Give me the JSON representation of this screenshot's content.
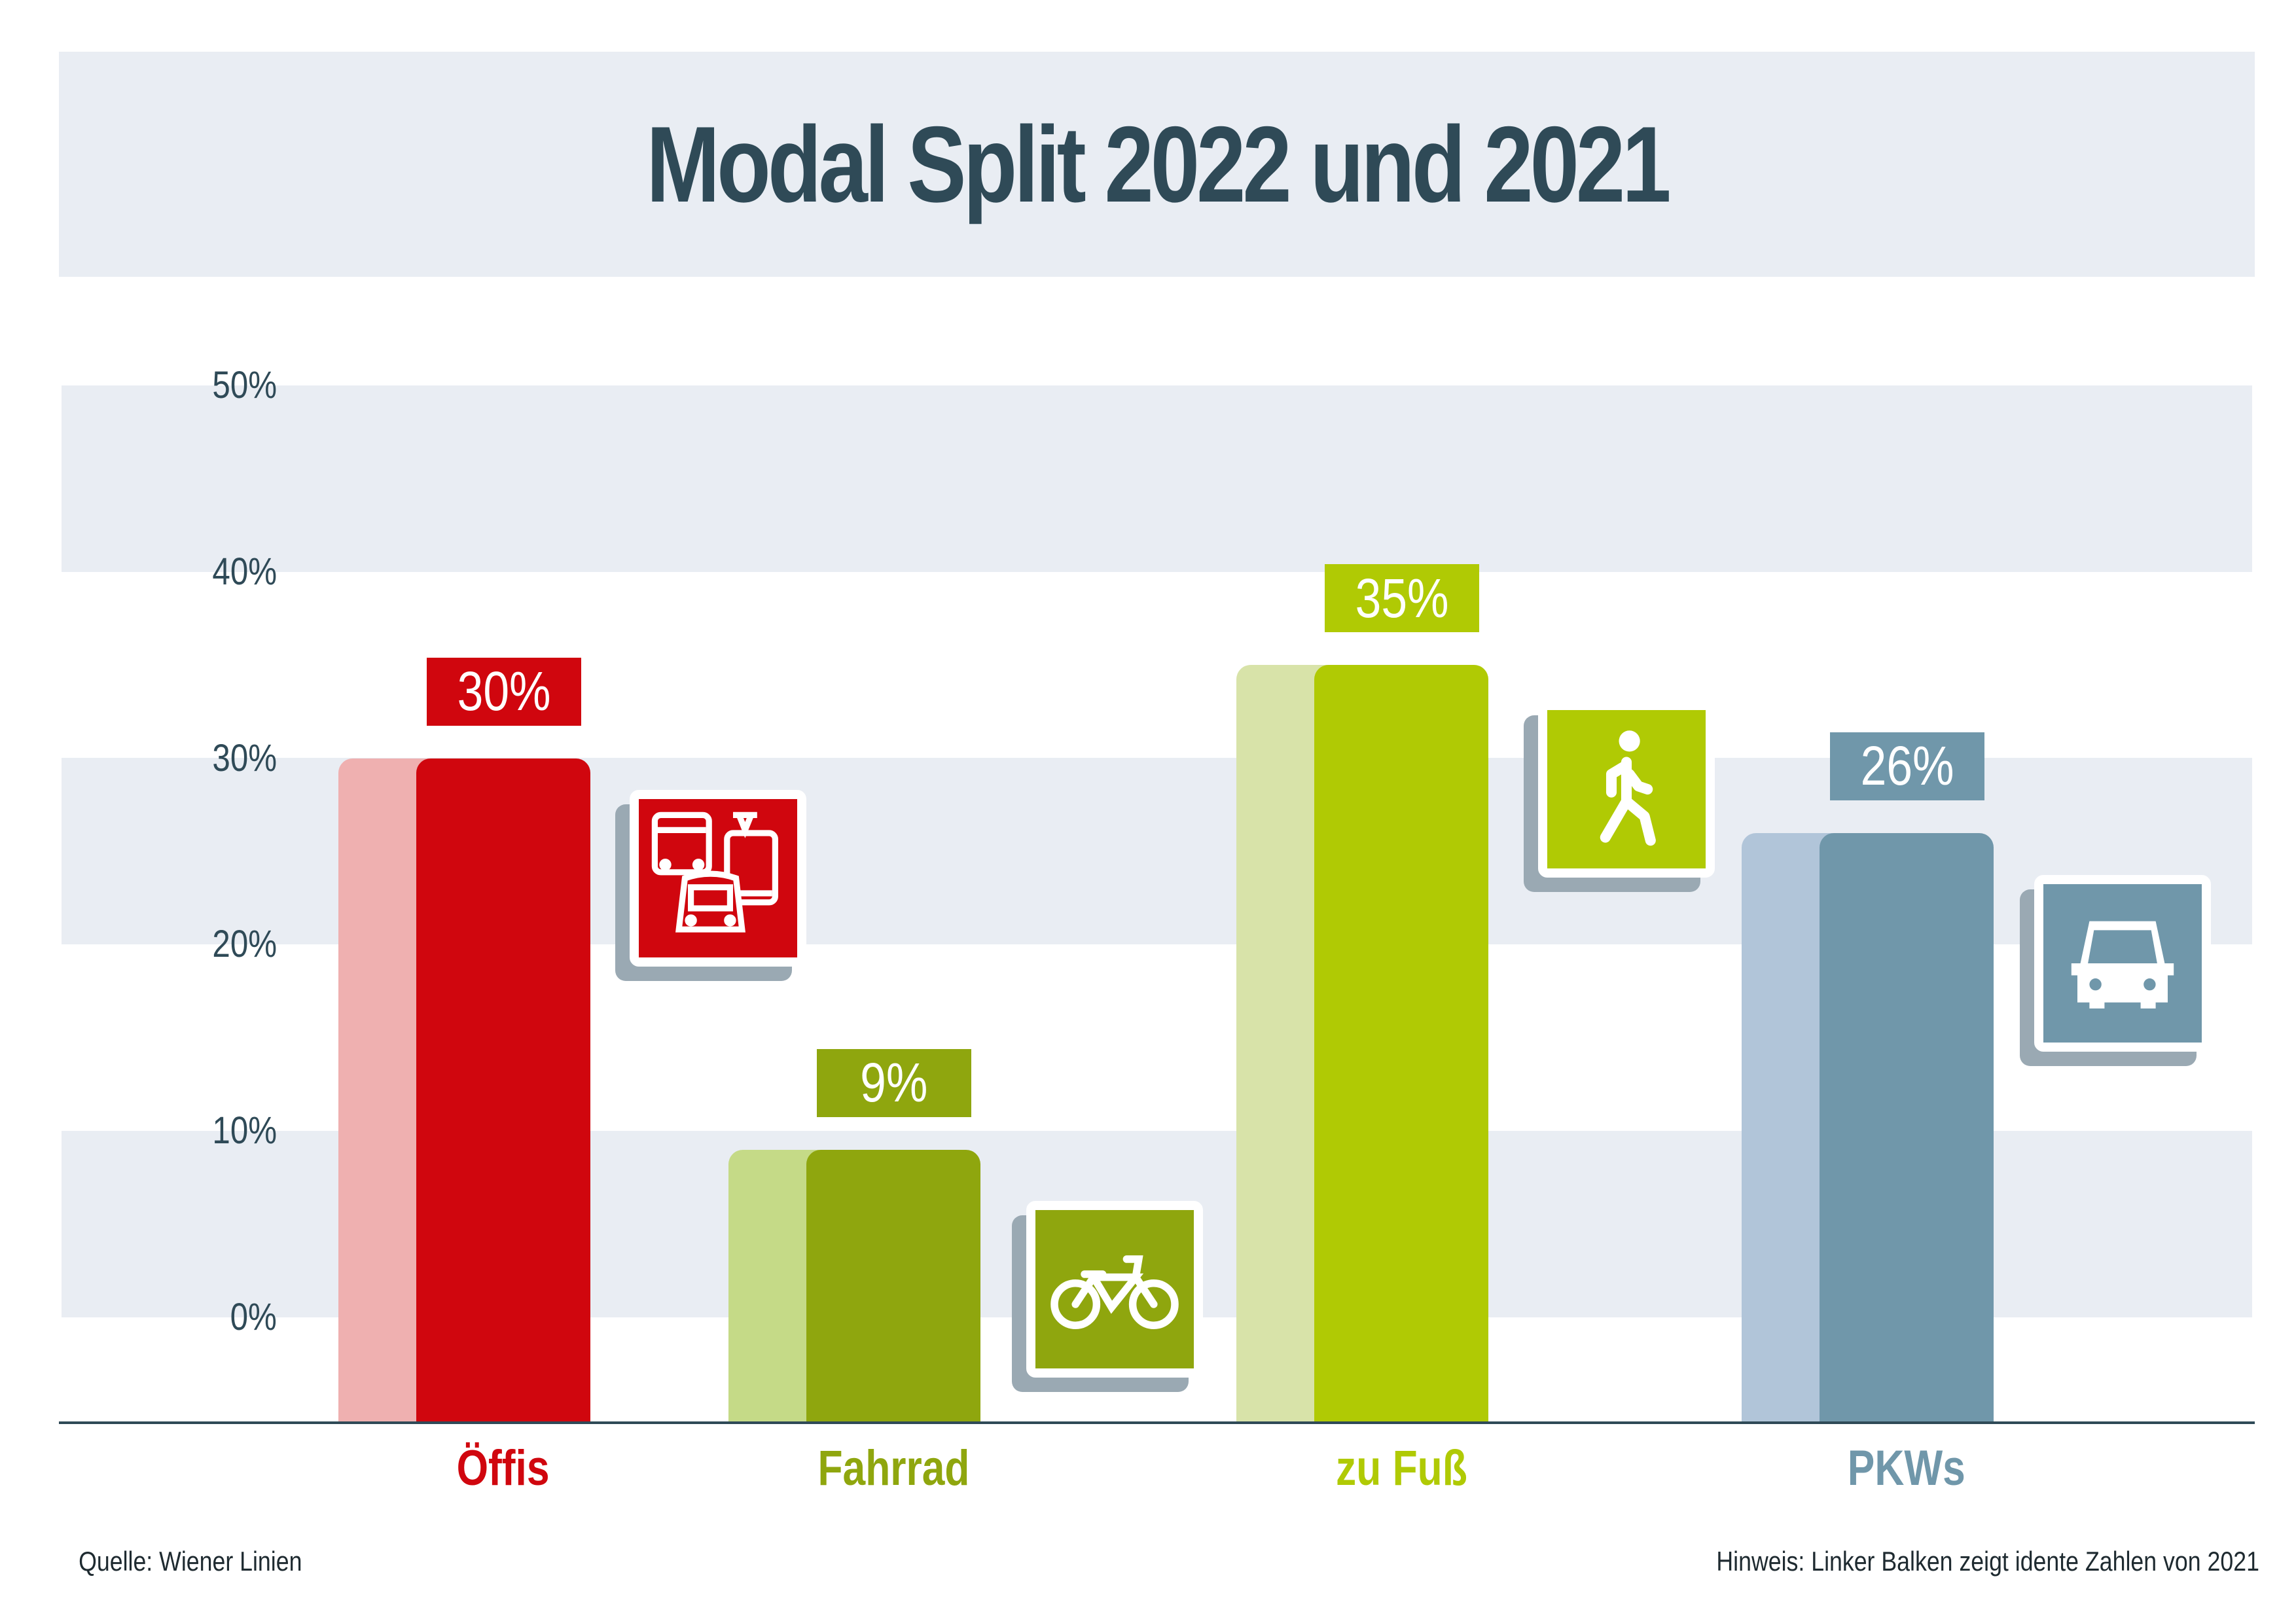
{
  "title": "Modal Split 2022 und 2021",
  "chart_data": {
    "type": "bar",
    "title": "Modal Split 2022 und 2021",
    "categories": [
      "Öffis",
      "Fahrrad",
      "zu Fuß",
      "PKWs"
    ],
    "series": [
      {
        "name": "2021",
        "values": [
          30,
          9,
          35,
          26
        ]
      },
      {
        "name": "2022",
        "values": [
          30,
          9,
          35,
          26
        ]
      }
    ],
    "value_labels": [
      "30%",
      "9%",
      "35%",
      "26%"
    ],
    "y_ticks": [
      "0%",
      "10%",
      "20%",
      "30%",
      "40%",
      "50%"
    ],
    "ylim": [
      0,
      50
    ],
    "grid": "alternating bands",
    "colors": {
      "Öffis": {
        "2022": "#d0060e",
        "2021": "#efb0b0"
      },
      "Fahrrad": {
        "2022": "#8fa60e",
        "2021": "#c5da87"
      },
      "zu Fuß": {
        "2022": "#b0ca04",
        "2021": "#d8e3a9"
      },
      "PKWs": {
        "2022": "#7097aa",
        "2021": "#b1c5d9"
      }
    },
    "icons": [
      "public-transport-icon",
      "bicycle-icon",
      "pedestrian-icon",
      "car-icon"
    ]
  },
  "footer": {
    "source": "Quelle: Wiener Linien",
    "note": "Hinweis: Linker Balken zeigt idente Zahlen von 2021"
  }
}
